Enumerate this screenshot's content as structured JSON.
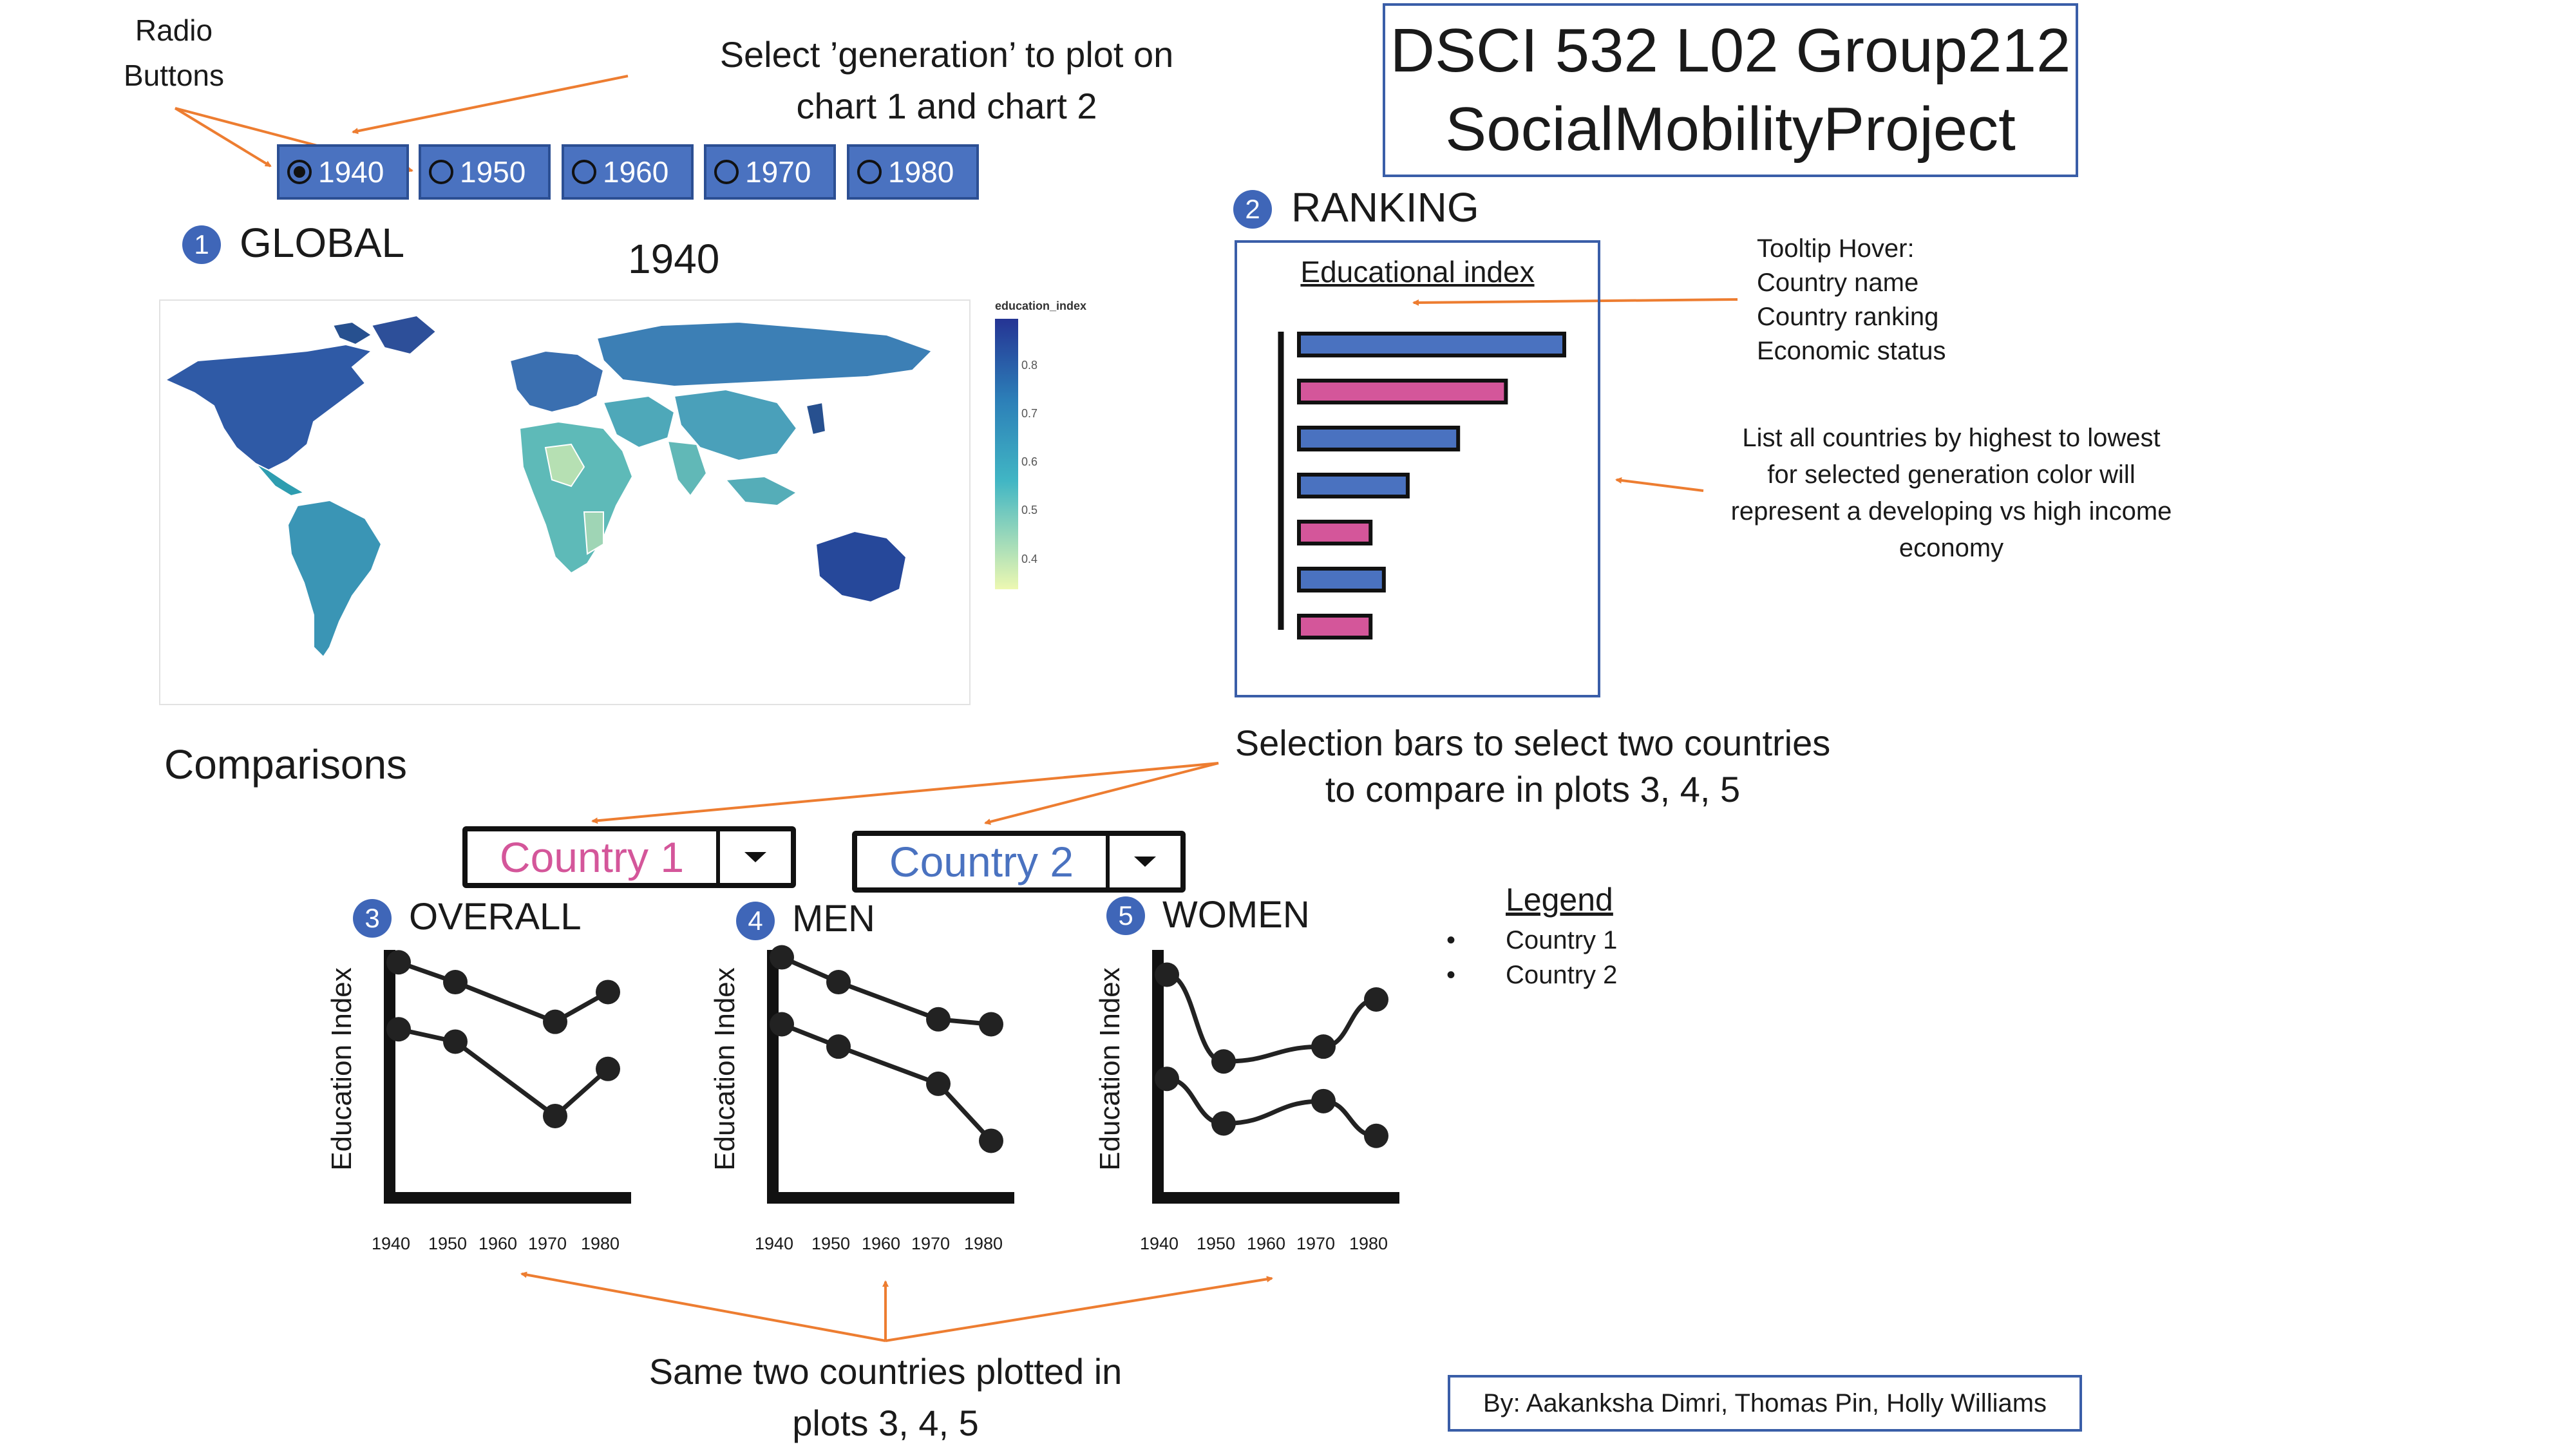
{
  "title": {
    "line1": "DSCI 532 L02 Group212",
    "line2": "SocialMobilityProject"
  },
  "annotations": {
    "radio_label": [
      "Radio",
      "Buttons"
    ],
    "select_generation": [
      "Select ’generation’ to plot on",
      "chart 1 and chart 2"
    ],
    "tooltip": [
      "Tooltip Hover:",
      "Country name",
      "Country ranking",
      "Economic status"
    ],
    "ranking_note": [
      "List all countries by highest to lowest",
      "for selected generation color will",
      "represent a developing vs high income",
      "economy"
    ],
    "selection_bars": [
      "Selection bars to select two countries",
      "to compare in plots 3, 4, 5"
    ],
    "same_countries": [
      "Same two countries plotted in",
      "plots 3, 4, 5"
    ]
  },
  "radio_buttons": {
    "options": [
      "1940",
      "1950",
      "1960",
      "1970",
      "1980"
    ],
    "selected": "1940"
  },
  "sections": {
    "global": {
      "num": "1",
      "title": "GLOBAL",
      "year": "1940"
    },
    "ranking": {
      "num": "2",
      "title": "RANKING",
      "chart_title": "Educational index"
    },
    "comparisons": {
      "title": "Comparisons"
    },
    "overall": {
      "num": "3",
      "title": "OVERALL"
    },
    "men": {
      "num": "4",
      "title": "MEN"
    },
    "women": {
      "num": "5",
      "title": "WOMEN"
    }
  },
  "map_legend": {
    "title": "education_index",
    "ticks": [
      "0.8",
      "0.7",
      "0.6",
      "0.5",
      "0.4"
    ]
  },
  "dropdowns": {
    "country1": "Country 1",
    "country2": "Country 2"
  },
  "legend": {
    "title": "Legend",
    "items": [
      "Country 1",
      "Country 2"
    ]
  },
  "author": "By: Aakanksha Dimri, Thomas Pin, Holly Williams",
  "colors": {
    "accent_blue": "#4a72c0",
    "pink": "#d4569a",
    "arrow_orange": "#ed7d31",
    "border_blue": "#3a5ea8"
  },
  "chart_data": [
    {
      "type": "bar",
      "title": "Educational index",
      "orientation": "horizontal",
      "values": [
        1.0,
        0.78,
        0.6,
        0.41,
        0.27,
        0.32,
        0.27
      ],
      "colors": [
        "#4a72c0",
        "#d4569a",
        "#4a72c0",
        "#4a72c0",
        "#d4569a",
        "#4a72c0",
        "#d4569a"
      ]
    },
    {
      "type": "line",
      "title": "OVERALL",
      "ylabel": "Education Index",
      "x": [
        "1940",
        "1950",
        "1960",
        "1970",
        "1980"
      ],
      "series": [
        {
          "values": [
            0.95,
            0.87,
            null,
            0.71,
            0.83
          ]
        },
        {
          "values": [
            0.68,
            0.63,
            null,
            0.33,
            0.52
          ]
        }
      ]
    },
    {
      "type": "line",
      "title": "MEN",
      "ylabel": "Education Index",
      "x": [
        "1940",
        "1950",
        "1960",
        "1970",
        "1980"
      ],
      "series": [
        {
          "values": [
            0.97,
            0.87,
            null,
            0.72,
            0.7
          ]
        },
        {
          "values": [
            0.7,
            0.61,
            null,
            0.46,
            0.23
          ]
        }
      ]
    },
    {
      "type": "line",
      "title": "WOMEN",
      "ylabel": "Education Index",
      "x": [
        "1940",
        "1950",
        "1960",
        "1970",
        "1980"
      ],
      "series": [
        {
          "values": [
            0.9,
            0.55,
            null,
            0.61,
            0.8
          ]
        },
        {
          "values": [
            0.48,
            0.3,
            null,
            0.39,
            0.25
          ]
        }
      ]
    }
  ]
}
